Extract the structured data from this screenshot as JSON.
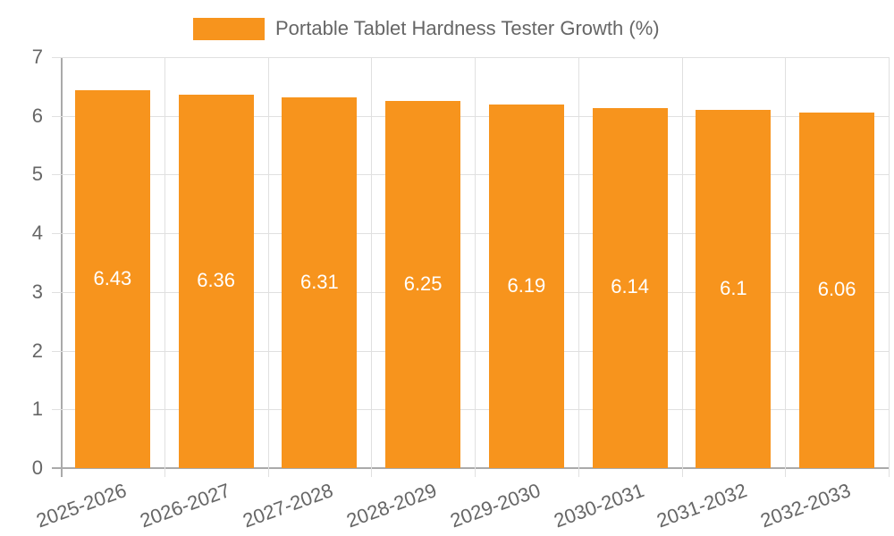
{
  "chart_data": {
    "type": "bar",
    "title": "",
    "xlabel": "",
    "ylabel": "",
    "ylim": [
      0,
      7
    ],
    "yticks": [
      "0",
      "1",
      "2",
      "3",
      "4",
      "5",
      "6",
      "7"
    ],
    "grid": true,
    "legend_position": "top",
    "categories": [
      "2025-2026",
      "2026-2027",
      "2027-2028",
      "2028-2029",
      "2029-2030",
      "2030-2031",
      "2031-2032",
      "2032-2033"
    ],
    "series": [
      {
        "name": "Portable Tablet Hardness Tester Growth (%)",
        "color": "#f7941d",
        "values": [
          6.43,
          6.36,
          6.31,
          6.25,
          6.19,
          6.14,
          6.1,
          6.06
        ],
        "data_labels": [
          "6.43",
          "6.36",
          "6.31",
          "6.25",
          "6.19",
          "6.14",
          "6.1",
          "6.06"
        ]
      }
    ]
  },
  "legend": {
    "label": "Portable Tablet Hardness Tester Growth (%)",
    "color": "#f7941d"
  }
}
